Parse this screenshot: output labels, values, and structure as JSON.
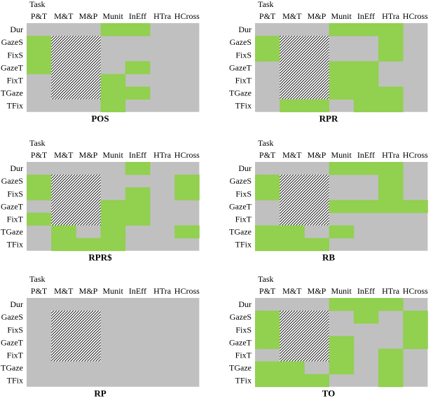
{
  "colors": {
    "background": "#c0c0c0",
    "highlight": "#92d050",
    "hatch_fg": "#000000",
    "hatch_bg": "#ffffff"
  },
  "chart_data": [
    {
      "type": "heatmap",
      "title": "POS",
      "xlabel": "Task",
      "columns": [
        "P&T",
        "M&T",
        "M&P",
        "Munit",
        "InEff",
        "HTra",
        "HCross"
      ],
      "rows": [
        "Dur",
        "GazeS",
        "FixS",
        "GazeT",
        "FixT",
        "TGaze",
        "TFix"
      ],
      "grid": [
        [
          0,
          0,
          0,
          1,
          1,
          0,
          0
        ],
        [
          1,
          0,
          0,
          0,
          0,
          0,
          0
        ],
        [
          1,
          0,
          0,
          0,
          0,
          0,
          0
        ],
        [
          1,
          0,
          0,
          0,
          1,
          0,
          0
        ],
        [
          0,
          0,
          0,
          1,
          0,
          0,
          0
        ],
        [
          0,
          0,
          0,
          1,
          1,
          0,
          0
        ],
        [
          0,
          0,
          0,
          1,
          0,
          0,
          0
        ]
      ],
      "hatched": {
        "rows": [
          1,
          6
        ],
        "cols": [
          1,
          3
        ]
      }
    },
    {
      "type": "heatmap",
      "title": "RPR",
      "xlabel": "Task",
      "columns": [
        "P&T",
        "M&T",
        "M&P",
        "Munit",
        "InEff",
        "HTra",
        "HCross"
      ],
      "rows": [
        "Dur",
        "GazeS",
        "FixS",
        "GazeT",
        "FixT",
        "TGaze",
        "TFix"
      ],
      "grid": [
        [
          0,
          0,
          0,
          1,
          1,
          1,
          0
        ],
        [
          1,
          0,
          0,
          0,
          0,
          1,
          0
        ],
        [
          1,
          0,
          0,
          0,
          0,
          1,
          0
        ],
        [
          0,
          0,
          0,
          1,
          1,
          0,
          0
        ],
        [
          0,
          0,
          0,
          1,
          1,
          0,
          0
        ],
        [
          0,
          0,
          0,
          1,
          1,
          1,
          0
        ],
        [
          0,
          1,
          1,
          0,
          1,
          1,
          0
        ]
      ],
      "hatched": {
        "rows": [
          1,
          6
        ],
        "cols": [
          1,
          3
        ]
      }
    },
    {
      "type": "heatmap",
      "title": "RPR$",
      "xlabel": "Task",
      "columns": [
        "P&T",
        "M&T",
        "M&P",
        "Munit",
        "InEff",
        "HTra",
        "HCross"
      ],
      "rows": [
        "Dur",
        "GazeS",
        "FixS",
        "GazeT",
        "FixT",
        "TGaze",
        "TFix"
      ],
      "grid": [
        [
          0,
          0,
          0,
          0,
          1,
          0,
          0
        ],
        [
          1,
          0,
          0,
          0,
          0,
          0,
          1
        ],
        [
          1,
          0,
          0,
          0,
          1,
          0,
          1
        ],
        [
          0,
          0,
          0,
          1,
          1,
          0,
          0
        ],
        [
          1,
          0,
          0,
          1,
          1,
          0,
          0
        ],
        [
          0,
          1,
          0,
          1,
          0,
          0,
          1
        ],
        [
          0,
          1,
          1,
          1,
          0,
          0,
          0
        ]
      ],
      "hatched": {
        "rows": [
          1,
          5
        ],
        "cols": [
          1,
          3
        ]
      }
    },
    {
      "type": "heatmap",
      "title": "RB",
      "xlabel": "Task",
      "columns": [
        "P&T",
        "M&T",
        "M&P",
        "Munit",
        "InEff",
        "HTra",
        "HCross"
      ],
      "rows": [
        "Dur",
        "GazeS",
        "FixS",
        "GazeT",
        "FixT",
        "TGaze",
        "TFix"
      ],
      "grid": [
        [
          0,
          0,
          0,
          1,
          1,
          1,
          0
        ],
        [
          1,
          0,
          0,
          0,
          0,
          1,
          0
        ],
        [
          1,
          0,
          0,
          0,
          0,
          1,
          0
        ],
        [
          0,
          0,
          0,
          1,
          1,
          1,
          1
        ],
        [
          0,
          0,
          0,
          0,
          0,
          0,
          0
        ],
        [
          1,
          1,
          0,
          1,
          0,
          0,
          0
        ],
        [
          1,
          1,
          1,
          0,
          0,
          0,
          0
        ]
      ],
      "hatched": {
        "rows": [
          1,
          5
        ],
        "cols": [
          1,
          3
        ]
      }
    },
    {
      "type": "heatmap",
      "title": "RP",
      "xlabel": "Task",
      "columns": [
        "P&T",
        "M&T",
        "M&P",
        "Munit",
        "InEff",
        "HTra",
        "HCross"
      ],
      "rows": [
        "Dur",
        "GazeS",
        "FixS",
        "GazeT",
        "FixT",
        "TGaze",
        "TFix"
      ],
      "grid": [
        [
          0,
          0,
          0,
          0,
          0,
          0,
          0
        ],
        [
          0,
          0,
          0,
          0,
          0,
          0,
          0
        ],
        [
          0,
          0,
          0,
          0,
          0,
          0,
          0
        ],
        [
          0,
          0,
          0,
          0,
          0,
          0,
          0
        ],
        [
          0,
          0,
          0,
          0,
          0,
          0,
          0
        ],
        [
          0,
          0,
          0,
          0,
          0,
          0,
          0
        ],
        [
          0,
          0,
          0,
          0,
          0,
          0,
          0
        ]
      ],
      "hatched": {
        "rows": [
          1,
          5
        ],
        "cols": [
          1,
          3
        ]
      }
    },
    {
      "type": "heatmap",
      "title": "TO",
      "xlabel": "Task",
      "columns": [
        "P&T",
        "M&T",
        "M&P",
        "Munit",
        "InEff",
        "HTra",
        "HCross"
      ],
      "rows": [
        "Dur",
        "GazeS",
        "FixS",
        "GazeT",
        "FixT",
        "TGaze",
        "TFix"
      ],
      "grid": [
        [
          0,
          0,
          0,
          1,
          1,
          1,
          0
        ],
        [
          1,
          0,
          0,
          0,
          1,
          0,
          1
        ],
        [
          1,
          0,
          0,
          0,
          0,
          0,
          1
        ],
        [
          1,
          0,
          0,
          1,
          0,
          0,
          1
        ],
        [
          0,
          0,
          0,
          1,
          0,
          1,
          0
        ],
        [
          1,
          1,
          0,
          1,
          0,
          1,
          0
        ],
        [
          1,
          1,
          1,
          0,
          0,
          1,
          0
        ]
      ],
      "hatched": {
        "rows": [
          1,
          5
        ],
        "cols": [
          1,
          3
        ]
      }
    }
  ]
}
